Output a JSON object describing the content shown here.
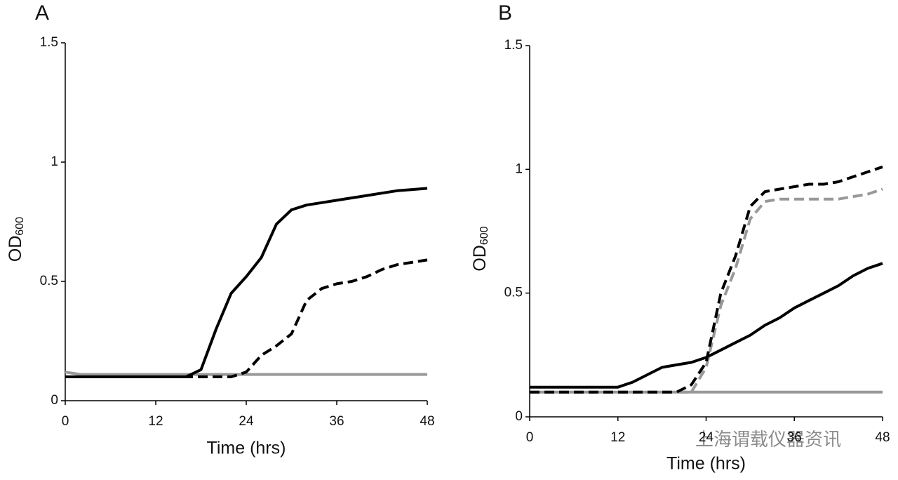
{
  "chart_data": [
    {
      "type": "line",
      "panel": "A",
      "xlabel": "Time (hrs)",
      "ylabel": "OD",
      "ylabel_sub": "600",
      "x": [
        0,
        2,
        4,
        6,
        8,
        10,
        12,
        14,
        16,
        18,
        20,
        22,
        24,
        26,
        28,
        30,
        32,
        34,
        36,
        38,
        40,
        42,
        44,
        46,
        48
      ],
      "xlim": [
        0,
        48
      ],
      "xticks": [
        0,
        12,
        24,
        36,
        48
      ],
      "ylim": [
        0,
        1.5
      ],
      "yticks": [
        0,
        0.5,
        1,
        1.5
      ],
      "series": [
        {
          "color": "#999999",
          "dashed": false,
          "values": [
            0.12,
            0.11,
            0.11,
            0.11,
            0.11,
            0.11,
            0.11,
            0.11,
            0.11,
            0.11,
            0.11,
            0.11,
            0.11,
            0.11,
            0.11,
            0.11,
            0.11,
            0.11,
            0.11,
            0.11,
            0.11,
            0.11,
            0.11,
            0.11,
            0.11
          ]
        },
        {
          "color": "#000000",
          "dashed": false,
          "values": [
            0.1,
            0.1,
            0.1,
            0.1,
            0.1,
            0.1,
            0.1,
            0.1,
            0.1,
            0.13,
            0.3,
            0.45,
            0.52,
            0.6,
            0.74,
            0.8,
            0.82,
            0.83,
            0.84,
            0.85,
            0.86,
            0.87,
            0.88,
            0.885,
            0.89
          ]
        },
        {
          "color": "#000000",
          "dashed": true,
          "values": [
            0.1,
            0.1,
            0.1,
            0.1,
            0.1,
            0.1,
            0.1,
            0.1,
            0.1,
            0.1,
            0.1,
            0.1,
            0.12,
            0.19,
            0.23,
            0.28,
            0.42,
            0.47,
            0.49,
            0.5,
            0.52,
            0.55,
            0.57,
            0.58,
            0.59
          ]
        }
      ]
    },
    {
      "type": "line",
      "panel": "B",
      "xlabel": "Time (hrs)",
      "ylabel": "OD",
      "ylabel_sub": "600",
      "x": [
        0,
        2,
        4,
        6,
        8,
        10,
        12,
        14,
        16,
        18,
        20,
        22,
        24,
        26,
        28,
        30,
        32,
        34,
        36,
        38,
        40,
        42,
        44,
        46,
        48
      ],
      "xlim": [
        0,
        48
      ],
      "xticks": [
        0,
        12,
        24,
        36,
        48
      ],
      "ylim": [
        0,
        1.5
      ],
      "yticks": [
        0,
        0.5,
        1,
        1.5
      ],
      "series": [
        {
          "color": "#999999",
          "dashed": false,
          "values": [
            0.1,
            0.1,
            0.1,
            0.1,
            0.1,
            0.1,
            0.1,
            0.1,
            0.1,
            0.1,
            0.1,
            0.1,
            0.1,
            0.1,
            0.1,
            0.1,
            0.1,
            0.1,
            0.1,
            0.1,
            0.1,
            0.1,
            0.1,
            0.1,
            0.1
          ]
        },
        {
          "color": "#000000",
          "dashed": false,
          "values": [
            0.12,
            0.12,
            0.12,
            0.12,
            0.12,
            0.12,
            0.12,
            0.14,
            0.17,
            0.2,
            0.21,
            0.22,
            0.24,
            0.27,
            0.3,
            0.33,
            0.37,
            0.4,
            0.44,
            0.47,
            0.5,
            0.53,
            0.57,
            0.6,
            0.62
          ]
        },
        {
          "color": "#999999",
          "dashed": true,
          "values": [
            0.1,
            0.1,
            0.1,
            0.1,
            0.1,
            0.1,
            0.1,
            0.1,
            0.1,
            0.1,
            0.1,
            0.1,
            0.2,
            0.45,
            0.6,
            0.8,
            0.87,
            0.88,
            0.88,
            0.88,
            0.88,
            0.88,
            0.89,
            0.9,
            0.92
          ]
        },
        {
          "color": "#000000",
          "dashed": true,
          "values": [
            0.1,
            0.1,
            0.1,
            0.1,
            0.1,
            0.1,
            0.1,
            0.1,
            0.1,
            0.1,
            0.1,
            0.13,
            0.22,
            0.5,
            0.65,
            0.85,
            0.91,
            0.92,
            0.93,
            0.94,
            0.94,
            0.95,
            0.97,
            0.99,
            1.01
          ]
        }
      ]
    }
  ],
  "watermark": "上海谓载仪器资讯"
}
